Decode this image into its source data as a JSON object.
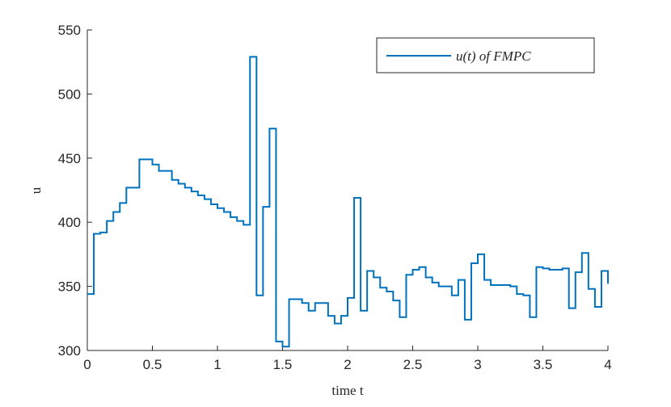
{
  "chart_data": {
    "type": "stairs",
    "x_label": "time t",
    "y_label": "u",
    "x": [
      0,
      0.05,
      0.1,
      0.15,
      0.2,
      0.25,
      0.3,
      0.35,
      0.4,
      0.45,
      0.5,
      0.55,
      0.6,
      0.65,
      0.7,
      0.75,
      0.8,
      0.85,
      0.9,
      0.95,
      1.0,
      1.05,
      1.1,
      1.15,
      1.2,
      1.25,
      1.3,
      1.35,
      1.4,
      1.45,
      1.5,
      1.55,
      1.6,
      1.65,
      1.7,
      1.75,
      1.8,
      1.85,
      1.9,
      1.95,
      2.0,
      2.05,
      2.1,
      2.15,
      2.2,
      2.25,
      2.3,
      2.35,
      2.4,
      2.45,
      2.5,
      2.55,
      2.6,
      2.65,
      2.7,
      2.75,
      2.8,
      2.85,
      2.9,
      2.95,
      3.0,
      3.05,
      3.1,
      3.15,
      3.2,
      3.25,
      3.3,
      3.35,
      3.4,
      3.45,
      3.5,
      3.55,
      3.6,
      3.65,
      3.7,
      3.75,
      3.8,
      3.85,
      3.9,
      3.95,
      4.0
    ],
    "series": [
      {
        "name": "u(t) of FMPC",
        "color": "#0072bd",
        "values": [
          344,
          391,
          392,
          401,
          408,
          415,
          427,
          427,
          449,
          449,
          445,
          440,
          440,
          433,
          430,
          427,
          424,
          421,
          418,
          414,
          411,
          408,
          404,
          401,
          398,
          529,
          343,
          412,
          473,
          307,
          303,
          340,
          340,
          337,
          331,
          337,
          337,
          327,
          321,
          327,
          341,
          419,
          331,
          362,
          357,
          349,
          346,
          339,
          326,
          359,
          363,
          365,
          357,
          353,
          350,
          350,
          343,
          355,
          324,
          368,
          375,
          355,
          351,
          351,
          351,
          350,
          344,
          343,
          326,
          365,
          364,
          363,
          363,
          364,
          333,
          361,
          376,
          348,
          334,
          362,
          352
        ]
      }
    ],
    "xlim": [
      0,
      4
    ],
    "ylim": [
      300,
      550
    ],
    "xticks": [
      0,
      0.5,
      1,
      1.5,
      2,
      2.5,
      3,
      3.5,
      4
    ],
    "yticks": [
      300,
      350,
      400,
      450,
      500,
      550
    ],
    "legend": "top-right"
  }
}
